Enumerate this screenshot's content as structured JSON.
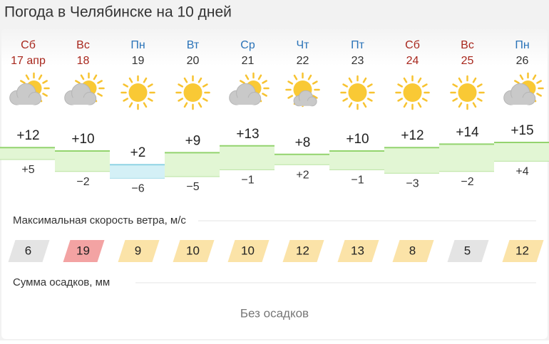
{
  "header": {
    "title": "Погода в Челябинске на 10 дней"
  },
  "days": [
    {
      "weekday": "Сб",
      "date": "17 апр",
      "color": "#a8271d"
    },
    {
      "weekday": "Вс",
      "date": "18",
      "color": "#a8271d"
    },
    {
      "weekday": "Пн",
      "date": "19",
      "color": "#2a73b8"
    },
    {
      "weekday": "Вт",
      "date": "20",
      "color": "#2a73b8"
    },
    {
      "weekday": "Ср",
      "date": "21",
      "color": "#2a73b8"
    },
    {
      "weekday": "Чт",
      "date": "22",
      "color": "#2a73b8"
    },
    {
      "weekday": "Пт",
      "date": "23",
      "color": "#2a73b8"
    },
    {
      "weekday": "Сб",
      "date": "24",
      "color": "#a8271d"
    },
    {
      "weekday": "Вс",
      "date": "25",
      "color": "#a8271d"
    },
    {
      "weekday": "Пн",
      "date": "26",
      "color": "#2a73b8"
    }
  ],
  "temperature": {
    "max": {
      "values": [
        12,
        10,
        2,
        9,
        13,
        8,
        10,
        12,
        14,
        15
      ],
      "value_labels": [
        "+12",
        "+10",
        "+2",
        "+9",
        "+13",
        "+8",
        "+10",
        "+12",
        "+14",
        "+15"
      ]
    },
    "min": {
      "values": [
        5,
        -2,
        -6,
        -5,
        -1,
        2,
        -1,
        -3,
        -2,
        4
      ],
      "value_labels": [
        "+5",
        "−2",
        "−6",
        "−5",
        "−1",
        "+2",
        "−1",
        "−3",
        "−2",
        "+4"
      ]
    }
  },
  "wind": {
    "label": "Максимальная скорость ветра, м/с",
    "values": [
      6,
      19,
      9,
      10,
      10,
      12,
      13,
      8,
      5,
      12
    ],
    "colors": [
      "#e4e4e4",
      "#f3a3a3",
      "#fbe3a8",
      "#fbe3a8",
      "#fbe3a8",
      "#fbe3a8",
      "#fbe3a8",
      "#fbe3a8",
      "#e4e4e4",
      "#fbe3a8"
    ]
  },
  "precipitation": {
    "label": "Сумма осадков, мм",
    "text": "Без осадков"
  }
}
